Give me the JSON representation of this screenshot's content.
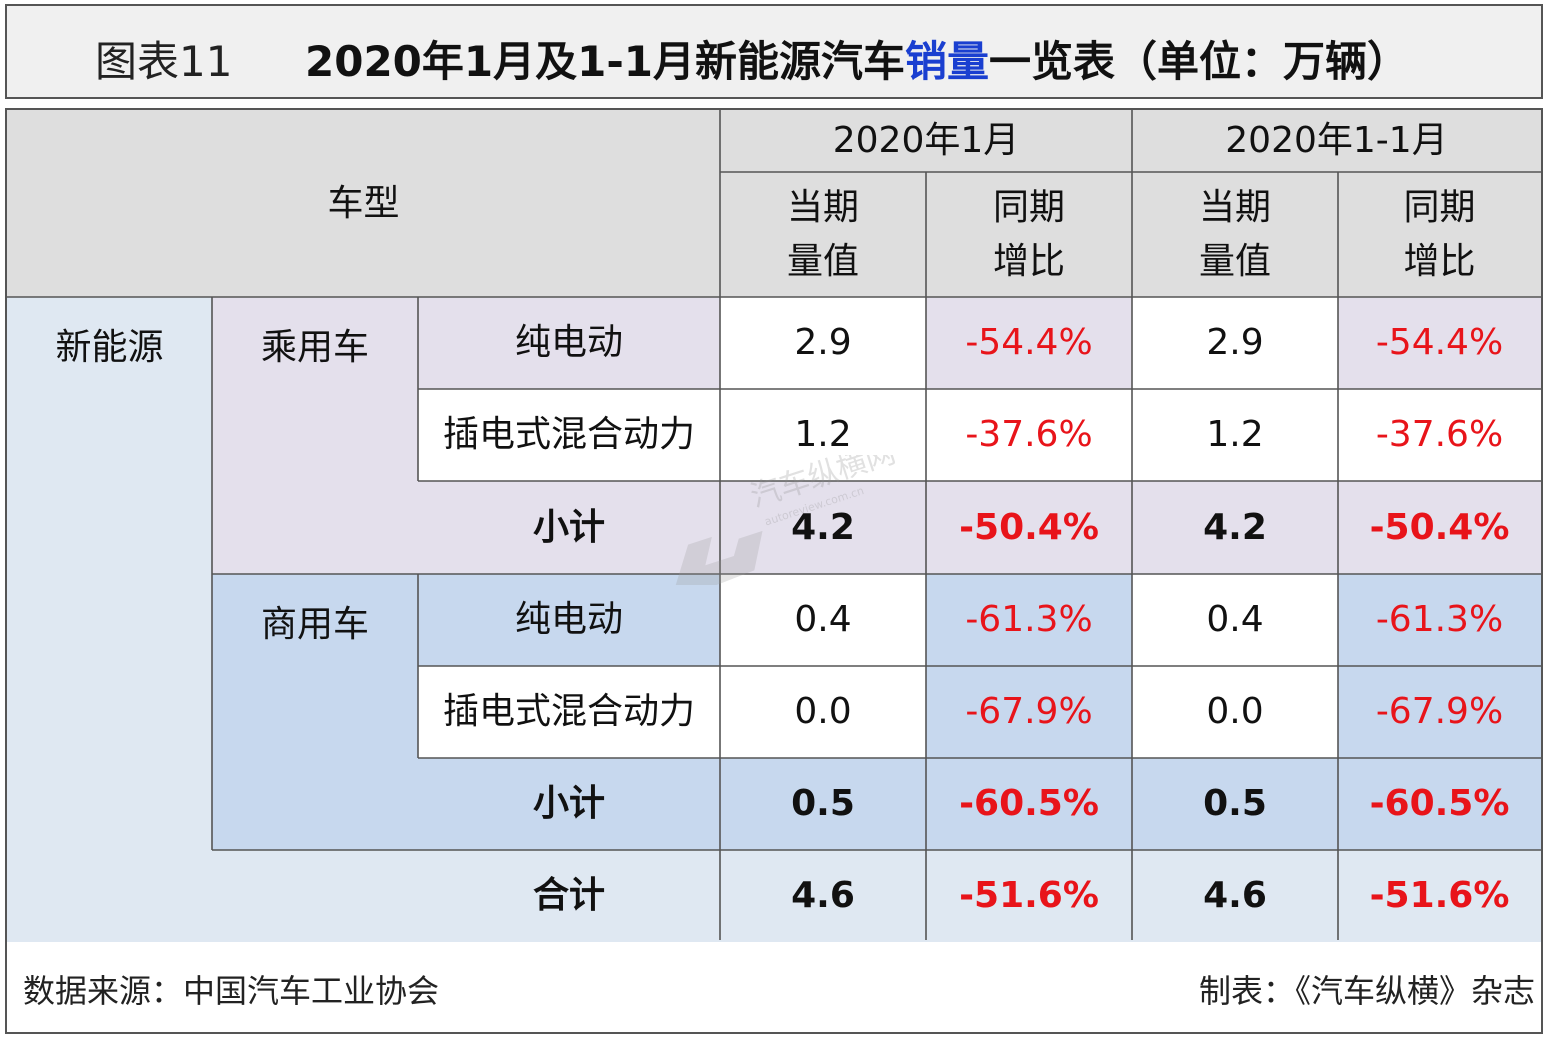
{
  "title": {
    "label": "图表11",
    "main_prefix": "2020年1月及1-1月新能源汽车",
    "main_highlight": "销量",
    "main_suffix": "一览表（单位：万辆）"
  },
  "header": {
    "vehicle_type": "车型",
    "period1": "2020年1月",
    "period2": "2020年1-1月",
    "col_value_line1": "当期",
    "col_value_line2": "量值",
    "col_growth_line1": "同期",
    "col_growth_line2": "增比"
  },
  "rows": {
    "category": "新能源",
    "group_passenger": "乘用车",
    "group_commercial": "商用车",
    "passenger_bev": {
      "label": "纯电动",
      "v1": "2.9",
      "g1": "-54.4%",
      "v2": "2.9",
      "g2": "-54.4%"
    },
    "passenger_phev": {
      "label": "插电式混合动力",
      "v1": "1.2",
      "g1": "-37.6%",
      "v2": "1.2",
      "g2": "-37.6%"
    },
    "passenger_subtotal": {
      "label": "小计",
      "v1": "4.2",
      "g1": "-50.4%",
      "v2": "4.2",
      "g2": "-50.4%"
    },
    "commercial_bev": {
      "label": "纯电动",
      "v1": "0.4",
      "g1": "-61.3%",
      "v2": "0.4",
      "g2": "-61.3%"
    },
    "commercial_phev": {
      "label": "插电式混合动力",
      "v1": "0.0",
      "g1": "-67.9%",
      "v2": "0.0",
      "g2": "-67.9%"
    },
    "commercial_subtotal": {
      "label": "小计",
      "v1": "0.5",
      "g1": "-60.5%",
      "v2": "0.5",
      "g2": "-60.5%"
    },
    "total": {
      "label": "合计",
      "v1": "4.6",
      "g1": "-51.6%",
      "v2": "4.6",
      "g2": "-51.6%"
    }
  },
  "footer": {
    "source": "数据来源：中国汽车工业协会",
    "maker": "制表：《汽车纵横》杂志"
  },
  "watermark": {
    "text": "汽车纵横网",
    "url": "autoreview.com.cn"
  },
  "colors": {
    "negative": "#e8141a",
    "highlight": "#1a3fd0",
    "passenger_bg": "#e4e0ec",
    "commercial_bg": "#c7d8ee",
    "header_bg": "#dedede"
  },
  "chart_data": {
    "type": "table",
    "title": "2020年1月及1-1月新能源汽车销量一览表（单位：万辆）",
    "columns": [
      "车型",
      "2020年1月 当期量值",
      "2020年1月 同期增比",
      "2020年1-1月 当期量值",
      "2020年1-1月 同期增比"
    ],
    "rows": [
      [
        "新能源 乘用车 纯电动",
        2.9,
        "-54.4%",
        2.9,
        "-54.4%"
      ],
      [
        "新能源 乘用车 插电式混合动力",
        1.2,
        "-37.6%",
        1.2,
        "-37.6%"
      ],
      [
        "新能源 乘用车 小计",
        4.2,
        "-50.4%",
        4.2,
        "-50.4%"
      ],
      [
        "新能源 商用车 纯电动",
        0.4,
        "-61.3%",
        0.4,
        "-61.3%"
      ],
      [
        "新能源 商用车 插电式混合动力",
        0.0,
        "-67.9%",
        0.0,
        "-67.9%"
      ],
      [
        "新能源 商用车 小计",
        0.5,
        "-60.5%",
        0.5,
        "-60.5%"
      ],
      [
        "新能源 合计",
        4.6,
        "-51.6%",
        4.6,
        "-51.6%"
      ]
    ]
  }
}
